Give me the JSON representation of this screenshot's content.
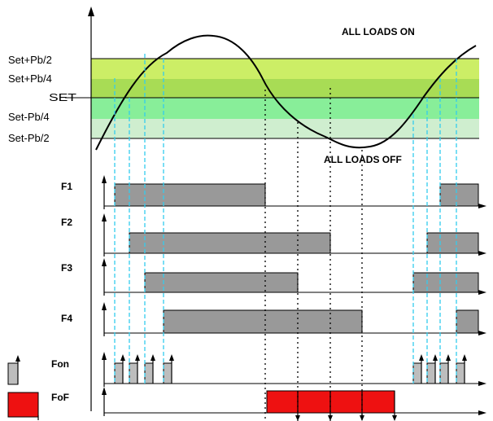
{
  "annotations": {
    "all_on": "ALL LOADS ON",
    "all_off": "ALL LOADS OFF"
  },
  "band_labels": {
    "set_plus_pb2": "Set+Pb/2",
    "set_plus_pb4": "Set+Pb/4",
    "set": "SET",
    "set_minus_pb4": "Set-Pb/4",
    "set_minus_pb2": "Set-Pb/2"
  },
  "band_colors": {
    "outer_top": "#ccee66",
    "inner_top": "#a8dc55",
    "inner_bottom": "#88ee99",
    "outer_bottom": "#cfeecf"
  },
  "rows": [
    {
      "label": "F1"
    },
    {
      "label": "F2"
    },
    {
      "label": "F3"
    },
    {
      "label": "F4"
    }
  ],
  "pulse_rows": {
    "fon": {
      "label": "Fon",
      "color": "#bdbdbd"
    },
    "fof": {
      "label": "FoF",
      "color": "#ee1111"
    }
  },
  "colors": {
    "load_bar": "#999999",
    "dash_cyan": "#33ccee",
    "dot_black": "#000000"
  }
}
